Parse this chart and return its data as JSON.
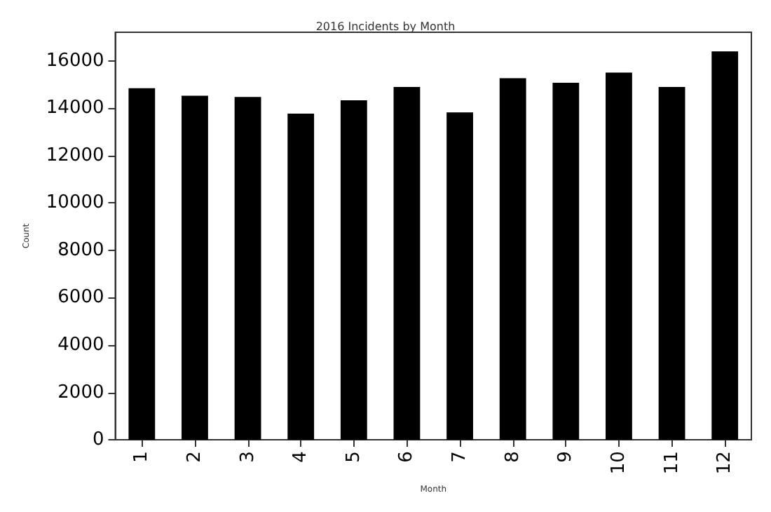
{
  "chart_data": {
    "type": "bar",
    "title": "2016 Incidents by Month",
    "xlabel": "Month",
    "ylabel": "Count",
    "categories": [
      "1",
      "2",
      "3",
      "4",
      "5",
      "6",
      "7",
      "8",
      "9",
      "10",
      "11",
      "12"
    ],
    "values": [
      14840,
      14520,
      14470,
      13770,
      14330,
      14890,
      13820,
      15260,
      15070,
      15500,
      14890,
      16390
    ],
    "color": "#000000",
    "ylim": [
      0,
      17200
    ],
    "yticks": [
      0,
      2000,
      4000,
      6000,
      8000,
      10000,
      12000,
      14000,
      16000
    ],
    "grid": false
  }
}
